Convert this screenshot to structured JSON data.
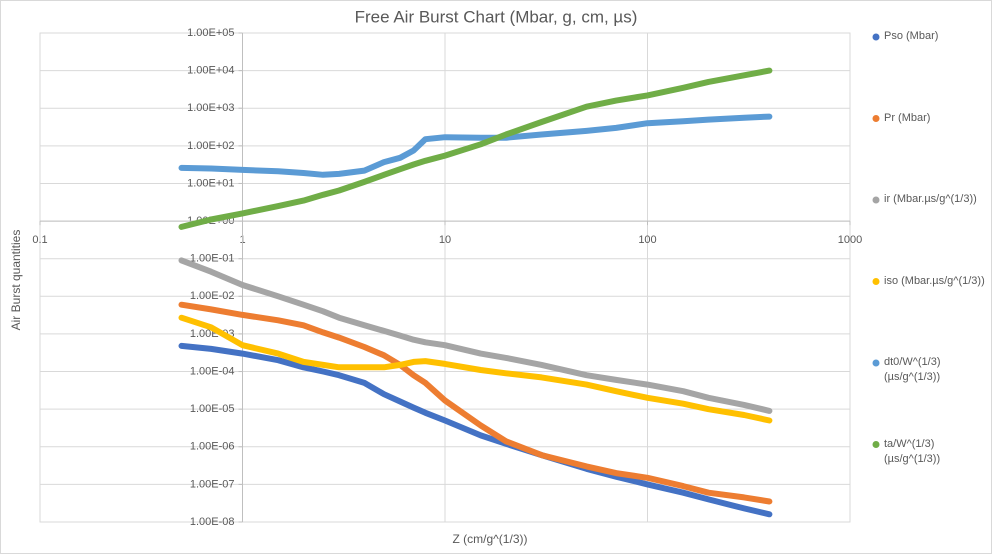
{
  "chart_data": {
    "type": "line",
    "title": "Free Air Burst Chart (Mbar, g, cm, µs)",
    "x_label": "Z (cm/g^(1/3))",
    "y_label": "Air Burst quantities",
    "xlog": true,
    "ylog": true,
    "grid": true,
    "legend": "right",
    "xlim": [
      0.1,
      1000
    ],
    "xticks": [
      0.1,
      1,
      10,
      100,
      1000
    ],
    "ylim": [
      1e-08,
      100000
    ],
    "yticks": [
      {
        "value": 100000,
        "label": "1.00E+05"
      },
      {
        "value": 10000,
        "label": "1.00E+04"
      },
      {
        "value": 1000,
        "label": "1.00E+03"
      },
      {
        "value": 100,
        "label": "1.00E+02"
      },
      {
        "value": 10,
        "label": "1.00E+01"
      },
      {
        "value": 1,
        "label": "1.00E+00"
      },
      {
        "value": 0.1,
        "label": "1.00E-01"
      },
      {
        "value": 0.01,
        "label": "1.00E-02"
      },
      {
        "value": 0.001,
        "label": "1.00E-03"
      },
      {
        "value": 0.0001,
        "label": "1.00E-04"
      },
      {
        "value": 1e-05,
        "label": "1.00E-05"
      },
      {
        "value": 1e-06,
        "label": "1.00E-06"
      },
      {
        "value": 1e-07,
        "label": "1.00E-07"
      },
      {
        "value": 1e-08,
        "label": "1.00E-08"
      }
    ],
    "x": [
      0.5,
      0.7,
      1,
      1.5,
      2,
      2.5,
      3,
      4,
      5,
      6,
      7,
      8,
      10,
      15,
      20,
      30,
      50,
      70,
      100,
      150,
      200,
      300,
      400
    ],
    "series": [
      {
        "name": "Pso (Mbar)",
        "color": "#4472c4",
        "values": [
          0.00048,
          0.0004,
          0.0003,
          0.0002,
          0.00013,
          0.0001,
          8e-05,
          5e-05,
          2.5e-05,
          1.6e-05,
          1.1e-05,
          8e-06,
          5e-06,
          2e-06,
          1.2e-06,
          6e-07,
          2.6e-07,
          1.6e-07,
          1e-07,
          6e-08,
          4e-08,
          2.3e-08,
          1.6e-08
        ]
      },
      {
        "name": "Pr (Mbar)",
        "color": "#ed7d31",
        "values": [
          0.006,
          0.0045,
          0.0032,
          0.0023,
          0.0017,
          0.0011,
          0.0008,
          0.00045,
          0.00027,
          0.00015,
          8e-05,
          5e-05,
          1.7e-05,
          3.7e-06,
          1.4e-06,
          6e-07,
          3e-07,
          2e-07,
          1.5e-07,
          9e-08,
          6e-08,
          4.5e-08,
          3.5e-08
        ]
      },
      {
        "name": "ir (Mbar.µs/g^(1/3))",
        "color": "#a5a5a5",
        "values": [
          0.09,
          0.045,
          0.02,
          0.01,
          0.006,
          0.004,
          0.0027,
          0.0017,
          0.0012,
          0.0009,
          0.0007,
          0.0006,
          0.0005,
          0.0003,
          0.00023,
          0.00015,
          8e-05,
          6e-05,
          4.5e-05,
          3e-05,
          2e-05,
          1.3e-05,
          9e-06
        ]
      },
      {
        "name": "iso (Mbar.µs/g^(1/3))",
        "color": "#ffc000",
        "values": [
          0.0027,
          0.0015,
          0.0005,
          0.0003,
          0.00018,
          0.00015,
          0.00013,
          0.00013,
          0.00013,
          0.00015,
          0.00018,
          0.00019,
          0.00016,
          0.00011,
          9e-05,
          7e-05,
          4.5e-05,
          3e-05,
          2e-05,
          1.4e-05,
          1e-05,
          7e-06,
          5e-06
        ]
      },
      {
        "name": "dt0/W^(1/3) (µs/g^(1/3))",
        "color": "#5b9bd5",
        "values": [
          26,
          25,
          23,
          21,
          19,
          17,
          18,
          22,
          37,
          48,
          75,
          150,
          170,
          165,
          165,
          200,
          250,
          300,
          400,
          450,
          500,
          560,
          600
        ]
      },
      {
        "name": "ta/W^(1/3) (µs/g^(1/3))",
        "color": "#70ad47",
        "values": [
          0.7,
          1.1,
          1.6,
          2.5,
          3.5,
          5,
          6.5,
          11,
          17,
          24,
          32,
          40,
          55,
          110,
          200,
          430,
          1100,
          1600,
          2200,
          3500,
          5000,
          7500,
          10000
        ]
      }
    ]
  }
}
